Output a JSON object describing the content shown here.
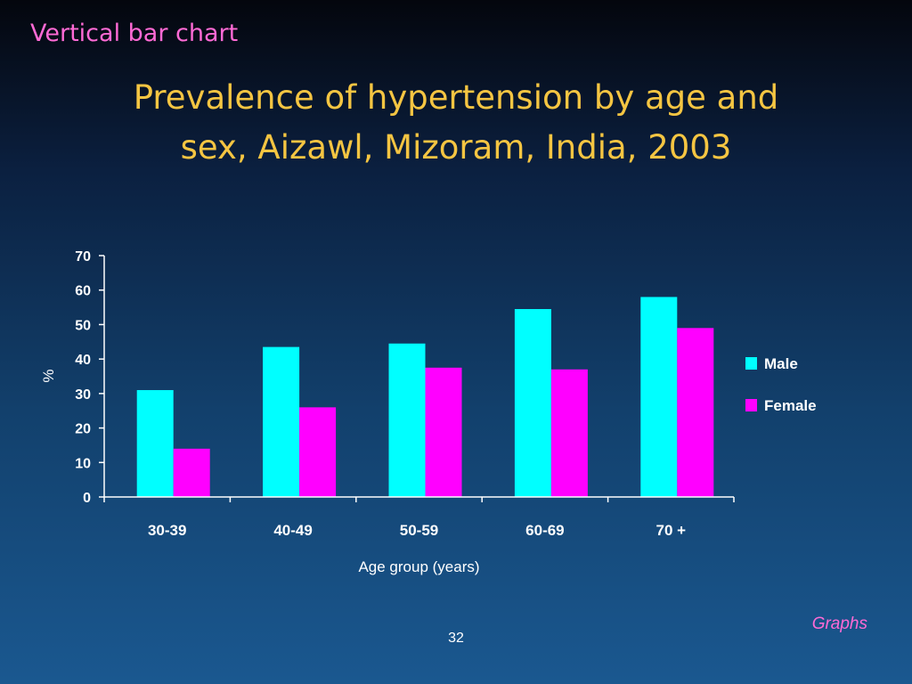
{
  "slide": {
    "label": "Vertical bar chart",
    "title_line1": "Prevalence of hypertension by age and",
    "title_line2": "sex, Aizawl, Mizoram, India, 2003",
    "page_number": "32",
    "footer_tag": "Graphs"
  },
  "colors": {
    "male": "#00ffff",
    "female": "#ff00ff",
    "label_pink": "#ff6ad5",
    "title_gold": "#f5c542",
    "axis": "#ffffff"
  },
  "chart_data": {
    "type": "bar",
    "title": "",
    "xlabel": "Age group (years)",
    "ylabel": "%",
    "categories": [
      "30-39",
      "40-49",
      "50-59",
      "60-69",
      "70 +"
    ],
    "series": [
      {
        "name": "Male",
        "values": [
          31,
          43.5,
          44.5,
          54.5,
          58
        ]
      },
      {
        "name": "Female",
        "values": [
          14,
          26,
          37.5,
          37,
          49
        ]
      }
    ],
    "ylim": [
      0,
      70
    ],
    "yticks": [
      0,
      10,
      20,
      30,
      40,
      50,
      60,
      70
    ],
    "grid": false,
    "legend": "right"
  }
}
